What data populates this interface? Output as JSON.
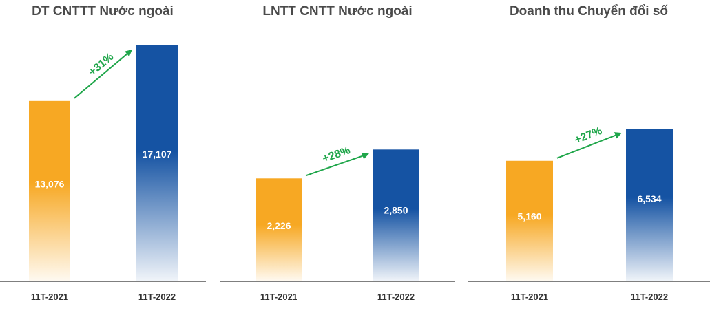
{
  "chart_data": [
    {
      "type": "bar",
      "title": "DT CNTTT Nước ngoài",
      "categories": [
        "11T-2021",
        "11T-2022"
      ],
      "values": [
        13076,
        17107
      ],
      "value_labels": [
        "13,076",
        "17,107"
      ],
      "growth_label": "+31%",
      "bar_colors": [
        "#f7a823",
        "#1553a3"
      ],
      "ylim": [
        0,
        17107
      ],
      "grid": false
    },
    {
      "type": "bar",
      "title": "LNTT CNTT Nước ngoài",
      "categories": [
        "11T-2021",
        "11T-2022"
      ],
      "values": [
        2226,
        2850
      ],
      "value_labels": [
        "2,226",
        "2,850"
      ],
      "growth_label": "+28%",
      "bar_colors": [
        "#f7a823",
        "#1553a3"
      ],
      "ylim": [
        0,
        5100
      ],
      "grid": false
    },
    {
      "type": "bar",
      "title": "Doanh thu Chuyển đổi số",
      "categories": [
        "11T-2021",
        "11T-2022"
      ],
      "values": [
        5160,
        6534
      ],
      "value_labels": [
        "5,160",
        "6,534"
      ],
      "growth_label": "+27%",
      "bar_colors": [
        "#f7a823",
        "#1553a3"
      ],
      "ylim": [
        0,
        10100
      ],
      "grid": false
    }
  ],
  "colors": {
    "growth_arrow": "#1fa64a",
    "axis": "#555555",
    "title": "#4a4a4a"
  }
}
